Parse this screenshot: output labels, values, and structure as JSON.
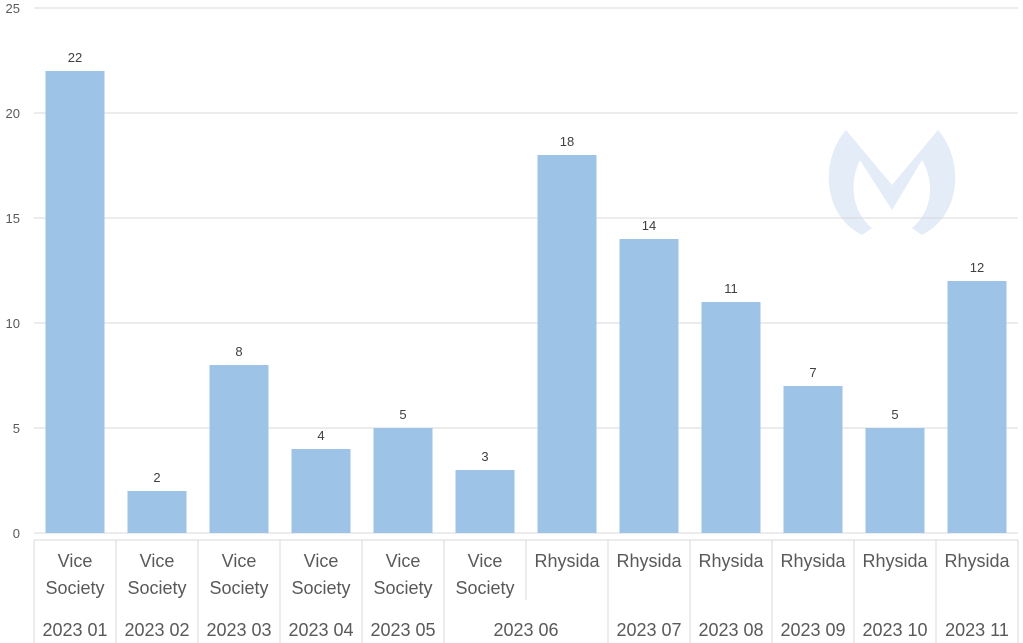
{
  "chart_data": {
    "type": "bar",
    "title": "",
    "xlabel": "",
    "ylabel": "",
    "ylim": [
      0,
      25
    ],
    "yticks": [
      0,
      5,
      10,
      15,
      20,
      25
    ],
    "grid": true,
    "bar_color": "#9DC3E6",
    "categories": [
      {
        "group": "Vice Society",
        "month": "2023 01"
      },
      {
        "group": "Vice Society",
        "month": "2023 02"
      },
      {
        "group": "Vice Society",
        "month": "2023 03"
      },
      {
        "group": "Vice Society",
        "month": "2023 04"
      },
      {
        "group": "Vice Society",
        "month": "2023 05"
      },
      {
        "group": "Vice Society",
        "month": "2023 06"
      },
      {
        "group": "Rhysida",
        "month": "2023 06"
      },
      {
        "group": "Rhysida",
        "month": "2023 07"
      },
      {
        "group": "Rhysida",
        "month": "2023 08"
      },
      {
        "group": "Rhysida",
        "month": "2023 09"
      },
      {
        "group": "Rhysida",
        "month": "2023 10"
      },
      {
        "group": "Rhysida",
        "month": "2023 11"
      }
    ],
    "values": [
      22,
      2,
      8,
      4,
      5,
      3,
      18,
      14,
      11,
      7,
      5,
      12
    ]
  }
}
